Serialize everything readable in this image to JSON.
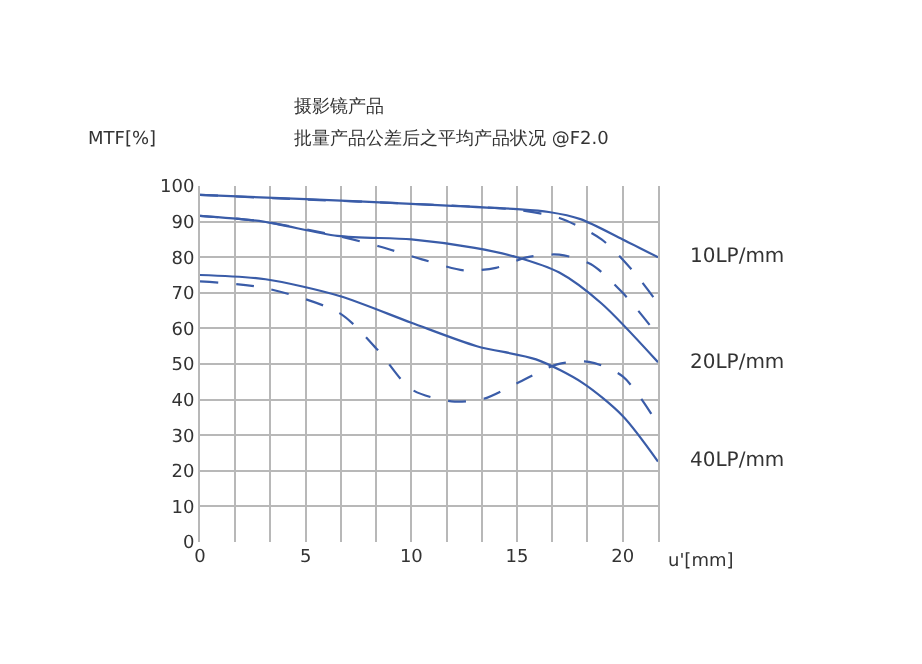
{
  "chart_data": {
    "type": "line",
    "title": "摄影镜产品",
    "subtitle": "批量产品公差后之平均产品状况 @F2.0",
    "xlabel": "u'[mm]",
    "ylabel": "MTF[%]",
    "xlim": [
      0,
      21.67
    ],
    "ylim": [
      0,
      100
    ],
    "xticks": [
      0,
      {
        "value": 1.67,
        "label": null
      },
      {
        "value": 3.33,
        "label": null
      },
      5,
      {
        "value": 6.67,
        "label": null
      },
      {
        "value": 8.33,
        "label": null
      },
      10,
      {
        "value": 11.67,
        "label": null
      },
      {
        "value": 13.33,
        "label": null
      },
      15,
      {
        "value": 16.67,
        "label": null
      },
      {
        "value": 18.33,
        "label": null
      },
      20,
      {
        "value": 21.67,
        "label": null
      }
    ],
    "yticks": [
      0,
      10,
      20,
      30,
      40,
      50,
      60,
      70,
      80,
      90,
      100
    ],
    "grid": true,
    "legend": false,
    "marker": "none",
    "series": [
      {
        "name": "10LP/mm",
        "color": "#3a5ca8",
        "line_style": "solid",
        "x": [
          0,
          5,
          10,
          15,
          16.5,
          18,
          20,
          21.67
        ],
        "values": [
          97.5,
          96.3,
          95,
          93.5,
          92.7,
          90.7,
          85,
          80
        ]
      },
      {
        "color": "#3a5ca8",
        "line_style": "dashed",
        "x": [
          0,
          5,
          10,
          15,
          17,
          19,
          20.5,
          21.67
        ],
        "values": [
          97.5,
          96.2,
          95,
          93.3,
          91,
          85,
          76,
          67
        ]
      },
      {
        "name": "20LP/mm",
        "color": "#3a5ca8",
        "line_style": "solid",
        "x": [
          0,
          3,
          6.5,
          10,
          13,
          15,
          17,
          19,
          21.67
        ],
        "values": [
          91.6,
          90,
          86,
          85,
          82.6,
          80,
          75.7,
          67,
          50.5
        ]
      },
      {
        "color": "#3a5ca8",
        "line_style": "dashed",
        "x": [
          0,
          3,
          6.5,
          8.5,
          10.5,
          12.5,
          14,
          15.5,
          17,
          18.5,
          20,
          21.67
        ],
        "values": [
          91.6,
          90,
          86,
          83,
          79.4,
          76.3,
          77,
          80,
          80.7,
          78,
          70,
          58
        ]
      },
      {
        "name": "40LP/mm",
        "color": "#3a5ca8",
        "line_style": "solid",
        "x": [
          0,
          3.1,
          6.6,
          10,
          13.1,
          15.9,
          18.1,
          20,
          21.67
        ],
        "values": [
          75,
          73.8,
          69.1,
          61.6,
          55,
          51.3,
          44.7,
          35.4,
          22.6
        ]
      },
      {
        "color": "#3a5ca8",
        "line_style": "dashed",
        "x": [
          0,
          3.1,
          6.6,
          8.4,
          10,
          11.9,
          13.4,
          15,
          16.9,
          18.4,
          20,
          21.67
        ],
        "values": [
          73.2,
          71.3,
          64.3,
          54,
          42.9,
          39.5,
          40.2,
          44.6,
          49.9,
          50.6,
          46.5,
          33
        ]
      }
    ]
  }
}
